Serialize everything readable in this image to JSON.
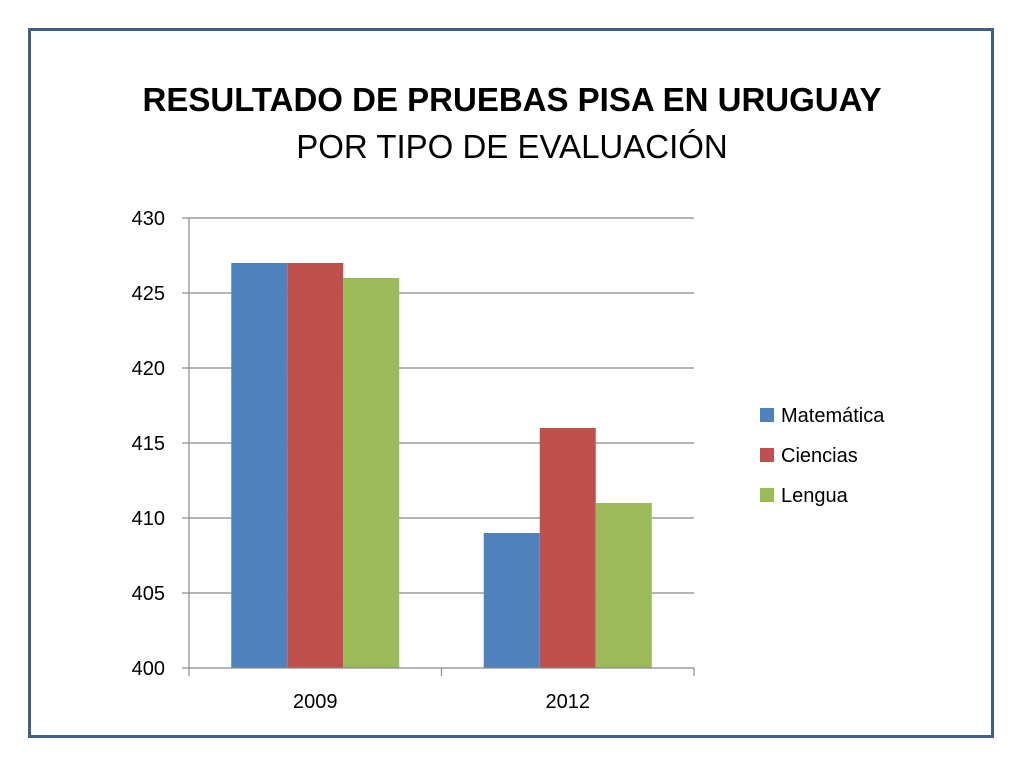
{
  "chart_data": {
    "type": "bar",
    "title": "RESULTADO DE PRUEBAS PISA EN URUGUAY",
    "subtitle": "POR TIPO DE EVALUACIÓN",
    "categories": [
      "2009",
      "2012"
    ],
    "series": [
      {
        "name": "Matemática",
        "color": "#4f81bd",
        "values": [
          427,
          409
        ]
      },
      {
        "name": "Ciencias",
        "color": "#c0504d",
        "values": [
          427,
          416
        ]
      },
      {
        "name": "Lengua",
        "color": "#9bbb59",
        "values": [
          426,
          411
        ]
      }
    ],
    "ylim": [
      400,
      430
    ],
    "yticks": [
      400,
      405,
      410,
      415,
      420,
      425,
      430
    ],
    "grid": true,
    "legend": "right"
  }
}
